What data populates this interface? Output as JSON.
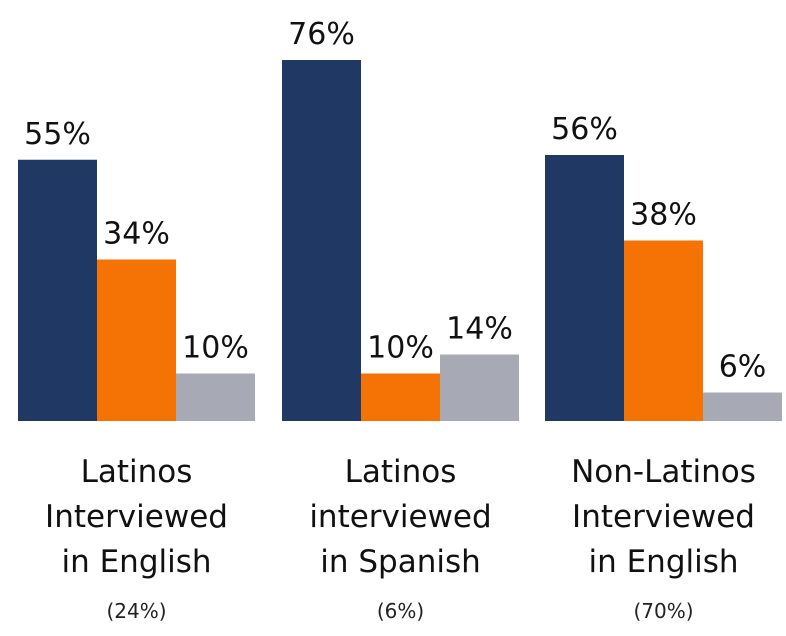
{
  "chart_data": {
    "type": "bar",
    "title": "",
    "xlabel": "",
    "ylabel": "",
    "ylim": [
      0,
      80
    ],
    "grid": false,
    "colors": [
      "#1f3864",
      "#f57205",
      "#a7a9b4"
    ],
    "groups": [
      {
        "label_lines": [
          "Latinos",
          "Interviewed",
          "in English"
        ],
        "share": "(24%)",
        "values": [
          55,
          34,
          10
        ],
        "labels": [
          "55%",
          "34%",
          "10%"
        ]
      },
      {
        "label_lines": [
          "Latinos",
          "interviewed",
          "in Spanish"
        ],
        "share": "(6%)",
        "values": [
          76,
          10,
          14
        ],
        "labels": [
          "76%",
          "10%",
          "14%"
        ]
      },
      {
        "label_lines": [
          "Non-Latinos",
          "Interviewed",
          "in English"
        ],
        "share": "(70%)",
        "values": [
          56,
          38,
          6
        ],
        "labels": [
          "56%",
          "38%",
          "6%"
        ]
      }
    ]
  }
}
